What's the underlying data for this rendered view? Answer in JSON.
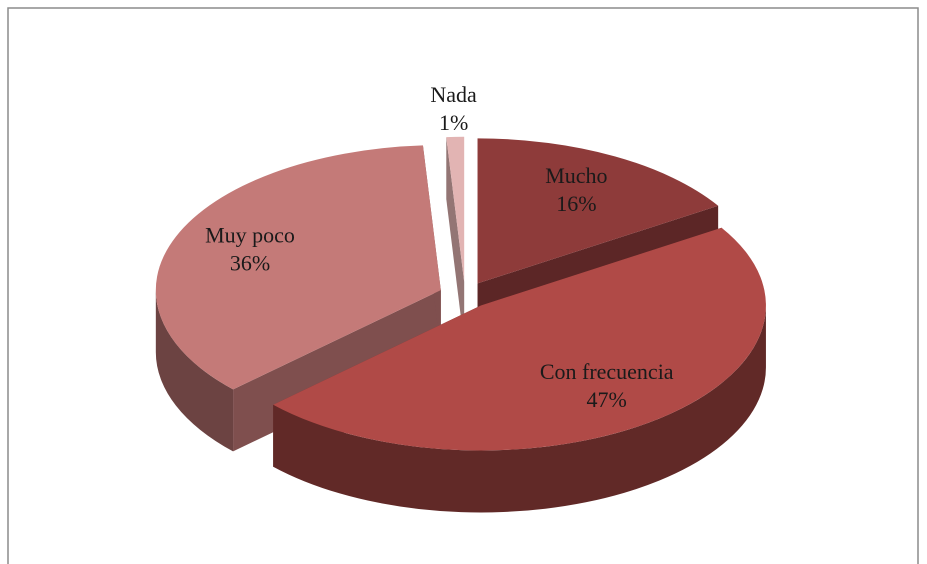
{
  "chart_data": {
    "type": "pie3d",
    "categories": [
      "Mucho",
      "Con frecuencia",
      "Muy poco",
      "Nada"
    ],
    "values": [
      16,
      47,
      36,
      1
    ],
    "value_labels": [
      "16%",
      "47%",
      "36%",
      "1%"
    ],
    "colors": [
      "#8e3b3a",
      "#b04a47",
      "#c47a78",
      "#e2b4b3"
    ]
  }
}
